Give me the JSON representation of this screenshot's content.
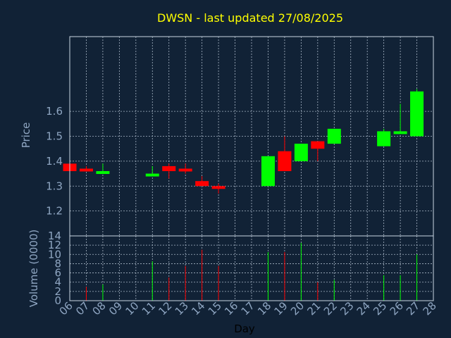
{
  "chart_data": {
    "type": "candlestick",
    "title": "DWSN - last updated 27/08/2025",
    "xlabel": "Day",
    "price_panel": {
      "ylabel": "Price",
      "ylim": [
        1.1,
        1.9
      ],
      "yticks": [
        "1.2",
        "1.3",
        "1.4",
        "1.5",
        "1.6"
      ]
    },
    "volume_panel": {
      "ylabel": "Volume (0000)",
      "ylim": [
        0,
        14
      ],
      "yticks": [
        "0",
        "2",
        "4",
        "6",
        "8",
        "10",
        "12",
        "14"
      ]
    },
    "xlim": [
      6,
      28
    ],
    "x_ticks": [
      "06",
      "07",
      "08",
      "09",
      "10",
      "11",
      "12",
      "13",
      "14",
      "15",
      "16",
      "17",
      "18",
      "19",
      "20",
      "21",
      "22",
      "23",
      "24",
      "25",
      "26",
      "27",
      "28"
    ],
    "grid": true,
    "colors": {
      "background": "#112236",
      "title": "#ffff00",
      "label": "#8fa6c2",
      "frame": "#c9d6e3",
      "grid": "#a8b6c6",
      "up": "#00ff00",
      "down": "#ff0000"
    },
    "candles": [
      {
        "day": 6,
        "open": 1.39,
        "high": 1.39,
        "low": 1.36,
        "close": 1.36
      },
      {
        "day": 7,
        "open": 1.37,
        "high": 1.38,
        "low": 1.36,
        "close": 1.36
      },
      {
        "day": 8,
        "open": 1.35,
        "high": 1.39,
        "low": 1.35,
        "close": 1.36
      },
      {
        "day": 11,
        "open": 1.34,
        "high": 1.38,
        "low": 1.34,
        "close": 1.35
      },
      {
        "day": 12,
        "open": 1.38,
        "high": 1.39,
        "low": 1.33,
        "close": 1.36
      },
      {
        "day": 13,
        "open": 1.37,
        "high": 1.39,
        "low": 1.35,
        "close": 1.36
      },
      {
        "day": 14,
        "open": 1.32,
        "high": 1.34,
        "low": 1.3,
        "close": 1.3
      },
      {
        "day": 15,
        "open": 1.3,
        "high": 1.31,
        "low": 1.27,
        "close": 1.29
      },
      {
        "day": 18,
        "open": 1.3,
        "high": 1.42,
        "low": 1.3,
        "close": 1.42
      },
      {
        "day": 19,
        "open": 1.44,
        "high": 1.5,
        "low": 1.36,
        "close": 1.36
      },
      {
        "day": 20,
        "open": 1.4,
        "high": 1.47,
        "low": 1.4,
        "close": 1.47
      },
      {
        "day": 21,
        "open": 1.48,
        "high": 1.48,
        "low": 1.4,
        "close": 1.45
      },
      {
        "day": 22,
        "open": 1.47,
        "high": 1.53,
        "low": 1.47,
        "close": 1.53
      },
      {
        "day": 25,
        "open": 1.46,
        "high": 1.53,
        "low": 1.46,
        "close": 1.52
      },
      {
        "day": 26,
        "open": 1.51,
        "high": 1.63,
        "low": 1.51,
        "close": 1.52
      },
      {
        "day": 27,
        "open": 1.5,
        "high": 1.69,
        "low": 1.5,
        "close": 1.68
      }
    ],
    "volume": [
      {
        "day": 7,
        "value": 3.0,
        "direction": "down"
      },
      {
        "day": 8,
        "value": 3.5,
        "direction": "up"
      },
      {
        "day": 11,
        "value": 8.5,
        "direction": "up"
      },
      {
        "day": 12,
        "value": 5.0,
        "direction": "down"
      },
      {
        "day": 13,
        "value": 7.5,
        "direction": "down"
      },
      {
        "day": 14,
        "value": 11.0,
        "direction": "down"
      },
      {
        "day": 15,
        "value": 7.5,
        "direction": "down"
      },
      {
        "day": 18,
        "value": 10.5,
        "direction": "up"
      },
      {
        "day": 19,
        "value": 10.5,
        "direction": "down"
      },
      {
        "day": 20,
        "value": 12.5,
        "direction": "up"
      },
      {
        "day": 21,
        "value": 4.0,
        "direction": "down"
      },
      {
        "day": 22,
        "value": 4.5,
        "direction": "up"
      },
      {
        "day": 25,
        "value": 5.5,
        "direction": "up"
      },
      {
        "day": 26,
        "value": 5.5,
        "direction": "up"
      },
      {
        "day": 27,
        "value": 10.0,
        "direction": "up"
      }
    ]
  }
}
